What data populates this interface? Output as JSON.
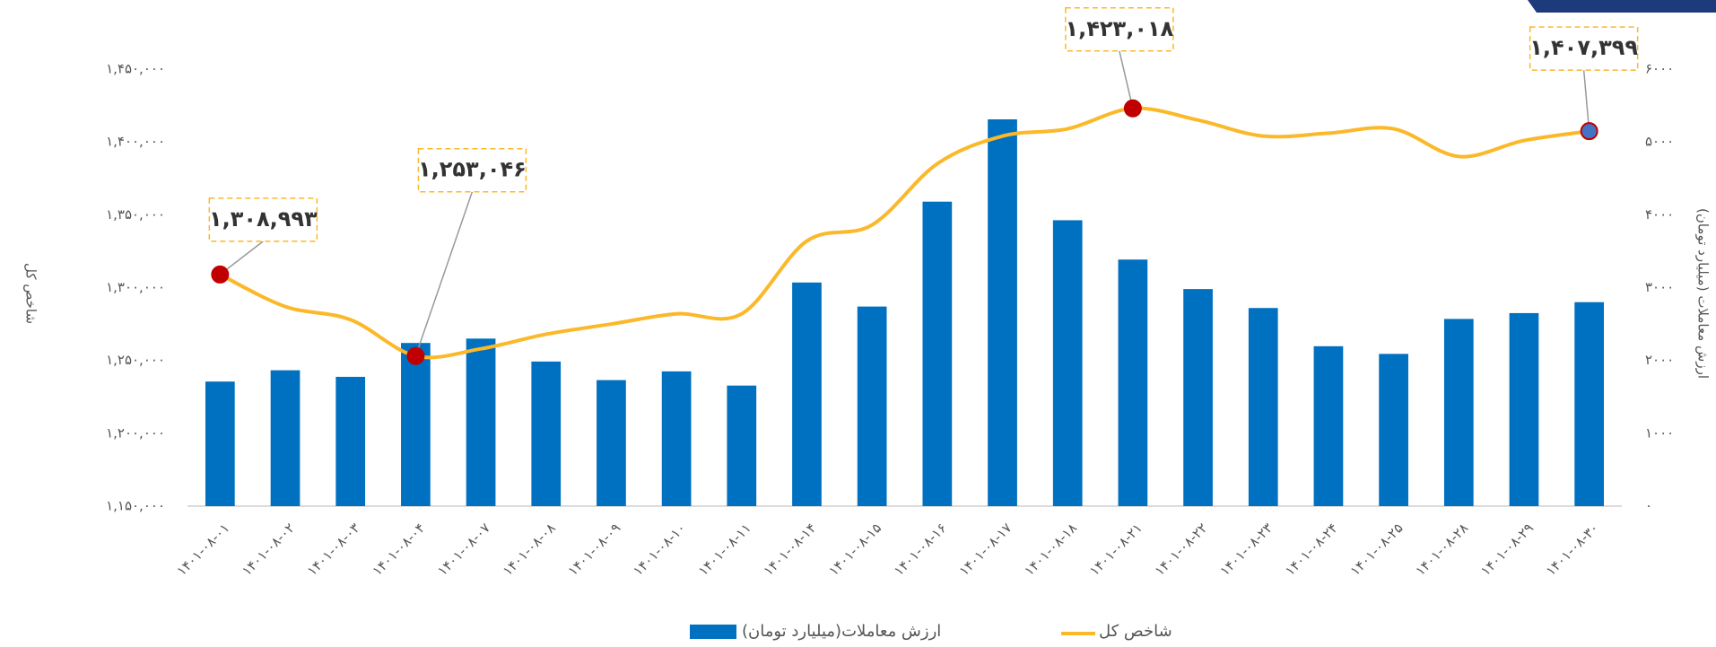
{
  "chart_data": {
    "type": "bar_line",
    "categories": [
      "۱۴۰۱-۰۸-۰۱",
      "۱۴۰۱-۰۸-۰۲",
      "۱۴۰۱-۰۸-۰۳",
      "۱۴۰۱-۰۸-۰۴",
      "۱۴۰۱-۰۸-۰۷",
      "۱۴۰۱-۰۸-۰۸",
      "۱۴۰۱-۰۸-۰۹",
      "۱۴۰۱-۰۸-۱۰",
      "۱۴۰۱-۰۸-۱۱",
      "۱۴۰۱-۰۸-۱۴",
      "۱۴۰۱-۰۸-۱۵",
      "۱۴۰۱-۰۸-۱۶",
      "۱۴۰۱-۰۸-۱۷",
      "۱۴۰۱-۰۸-۱۸",
      "۱۴۰۱-۰۸-۲۱",
      "۱۴۰۱-۰۸-۲۲",
      "۱۴۰۱-۰۸-۲۳",
      "۱۴۰۱-۰۸-۲۴",
      "۱۴۰۱-۰۸-۲۵",
      "۱۴۰۱-۰۸-۲۸",
      "۱۴۰۱-۰۸-۲۹",
      "۱۴۰۱-۰۸-۳۰"
    ],
    "series": [
      {
        "name": "ارزش معاملات(میلیارد تومان)",
        "type": "bar",
        "axis": "y2",
        "color": "#0070c0",
        "values": [
          1710,
          1865,
          1775,
          2240,
          2300,
          1985,
          1730,
          1850,
          1655,
          3070,
          2740,
          4180,
          5310,
          3925,
          3385,
          2980,
          2720,
          2195,
          2090,
          2570,
          2650,
          2800
        ]
      },
      {
        "name": "شاخص کل",
        "type": "line",
        "color": "#fbb829",
        "values": [
          1308993,
          1287000,
          1278000,
          1253046,
          1258000,
          1268000,
          1275000,
          1282000,
          1282000,
          1332000,
          1343000,
          1385000,
          1404000,
          1409000,
          1423018,
          1415000,
          1404000,
          1406000,
          1409000,
          1390000,
          1401000,
          1407399
        ],
        "value_labels": [
          "۱,۳۰۸,۹۹۳",
          null,
          null,
          "۱,۲۵۳,۰۴۶",
          null,
          null,
          null,
          null,
          null,
          null,
          null,
          null,
          null,
          null,
          "۱,۴۲۳,۰۱۸",
          null,
          null,
          null,
          null,
          null,
          null,
          "۱,۴۰۷,۳۹۹"
        ]
      }
    ],
    "ylabel": "شاخص کل",
    "y2label": "ارزش معاملات (میلیارد تومان)",
    "ylim": [
      1150000,
      1450000
    ],
    "yticks": [
      {
        "value": 1150000,
        "label": "۱,۱۵۰,۰۰۰"
      },
      {
        "value": 1200000,
        "label": "۱,۲۰۰,۰۰۰"
      },
      {
        "value": 1250000,
        "label": "۱,۲۵۰,۰۰۰"
      },
      {
        "value": 1300000,
        "label": "۱,۳۰۰,۰۰۰"
      },
      {
        "value": 1350000,
        "label": "۱,۳۵۰,۰۰۰"
      },
      {
        "value": 1400000,
        "label": "۱,۴۰۰,۰۰۰"
      },
      {
        "value": 1450000,
        "label": "۱,۴۵۰,۰۰۰"
      }
    ],
    "y2lim": [
      0,
      6000
    ],
    "y2ticks": [
      {
        "value": 0,
        "label": "۰"
      },
      {
        "value": 1000,
        "label": "۱۰۰۰"
      },
      {
        "value": 2000,
        "label": "۲۰۰۰"
      },
      {
        "value": 3000,
        "label": "۳۰۰۰"
      },
      {
        "value": 4000,
        "label": "۴۰۰۰"
      },
      {
        "value": 5000,
        "label": "۵۰۰۰"
      },
      {
        "value": 6000,
        "label": "۶۰۰۰"
      }
    ],
    "grid": false,
    "legend": "bottom"
  }
}
